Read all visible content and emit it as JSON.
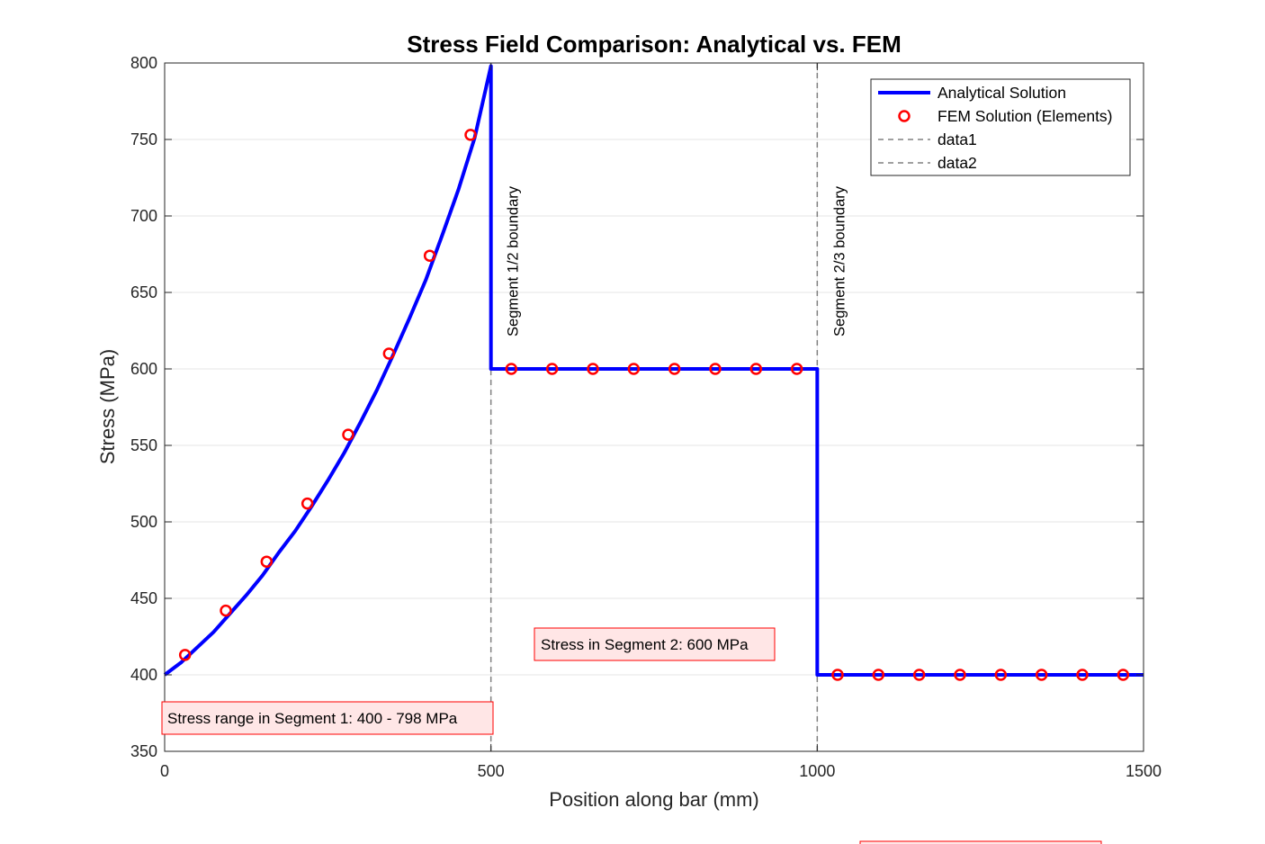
{
  "chart_data": {
    "type": "line",
    "title": "Stress Field Comparison: Analytical vs. FEM",
    "xlabel": "Position along bar (mm)",
    "ylabel": "Stress (MPa)",
    "xlim": [
      0,
      1500
    ],
    "ylim": [
      350,
      800
    ],
    "xticks": [
      0,
      500,
      1000,
      1500
    ],
    "yticks": [
      350,
      400,
      450,
      500,
      550,
      600,
      650,
      700,
      750,
      800
    ],
    "grid": true,
    "legend_position": "top-right",
    "series": [
      {
        "name": "Analytical Solution",
        "style": "solid-thick",
        "color": "#0000FF",
        "x": [
          0,
          25,
          50,
          75,
          100,
          125,
          150,
          175,
          200,
          225,
          250,
          275,
          300,
          325,
          350,
          375,
          400,
          425,
          450,
          475,
          500,
          500,
          1000,
          1000,
          1500
        ],
        "y": [
          400,
          408,
          418,
          428,
          440,
          452,
          465,
          480,
          494,
          510,
          527,
          545,
          565,
          586,
          609,
          633,
          658,
          687,
          717,
          751,
          798,
          600,
          600,
          400,
          400
        ]
      },
      {
        "name": "FEM Solution (Elements)",
        "style": "markers",
        "color": "#FF0000",
        "x": [
          31.25,
          93.75,
          156.25,
          218.75,
          281.25,
          343.75,
          406.25,
          468.75,
          531.25,
          593.75,
          656.25,
          718.75,
          781.25,
          843.75,
          906.25,
          968.75,
          1031.25,
          1093.75,
          1156.25,
          1218.75,
          1281.25,
          1343.75,
          1406.25,
          1468.75
        ],
        "y": [
          413,
          442,
          474,
          512,
          557,
          610,
          674,
          753,
          600,
          600,
          600,
          600,
          600,
          600,
          600,
          600,
          400,
          400,
          400,
          400,
          400,
          400,
          400,
          400
        ]
      },
      {
        "name": "data1",
        "style": "dashed",
        "color": "#808080",
        "x": [
          500,
          500
        ],
        "y": [
          350,
          800
        ]
      },
      {
        "name": "data2",
        "style": "dashed",
        "color": "#808080",
        "x": [
          1000,
          1000
        ],
        "y": [
          350,
          800
        ]
      }
    ],
    "boundary_labels": [
      {
        "x": 500,
        "text": "Segment 1/2 boundary"
      },
      {
        "x": 1000,
        "text": "Segment 2/3 boundary"
      }
    ],
    "annotations": [
      {
        "id": "seg1",
        "text": "Stress range in Segment 1: 400 - 798 MPa"
      },
      {
        "id": "seg2",
        "text": "Stress in Segment 2: 600 MPa"
      },
      {
        "id": "seg3",
        "text": ""
      }
    ]
  },
  "colors": {
    "analytical": "#0000FF",
    "fem_marker": "#FF0000",
    "boundary": "#808080",
    "annotation_bg": "#FFE6E6",
    "annotation_border": "#FF0000",
    "grid": "#E6E6E6"
  }
}
